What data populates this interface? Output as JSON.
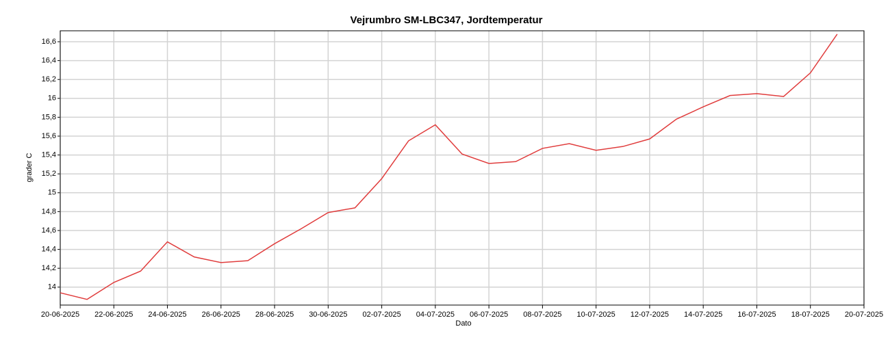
{
  "chart_data": {
    "type": "line",
    "title": "Vejrumbro SM-LBC347, Jordtemperatur",
    "xlabel": "Dato",
    "ylabel": "grader C",
    "x": [
      "20-06-2025",
      "21-06-2025",
      "22-06-2025",
      "23-06-2025",
      "24-06-2025",
      "25-06-2025",
      "26-06-2025",
      "27-06-2025",
      "28-06-2025",
      "29-06-2025",
      "30-06-2025",
      "01-07-2025",
      "02-07-2025",
      "03-07-2025",
      "04-07-2025",
      "05-07-2025",
      "06-07-2025",
      "07-07-2025",
      "08-07-2025",
      "09-07-2025",
      "10-07-2025",
      "11-07-2025",
      "12-07-2025",
      "13-07-2025",
      "14-07-2025",
      "15-07-2025",
      "16-07-2025",
      "17-07-2025",
      "18-07-2025",
      "19-07-2025"
    ],
    "series": [
      {
        "name": "Jordtemperatur",
        "color": "#e03c3c",
        "values": [
          13.94,
          13.87,
          14.05,
          14.17,
          14.48,
          14.32,
          14.26,
          14.28,
          14.46,
          14.62,
          14.79,
          14.84,
          15.15,
          15.55,
          15.72,
          15.41,
          15.31,
          15.33,
          15.47,
          15.52,
          15.45,
          15.49,
          15.57,
          15.78,
          15.91,
          16.03,
          16.05,
          16.02,
          16.27,
          16.68
        ]
      }
    ],
    "xlim": [
      "20-06-2025",
      "20-07-2025"
    ],
    "xticks": [
      "20-06-2025",
      "22-06-2025",
      "24-06-2025",
      "26-06-2025",
      "28-06-2025",
      "30-06-2025",
      "02-07-2025",
      "04-07-2025",
      "06-07-2025",
      "08-07-2025",
      "10-07-2025",
      "12-07-2025",
      "14-07-2025",
      "16-07-2025",
      "18-07-2025",
      "20-07-2025"
    ],
    "ylim": [
      13.81,
      16.716
    ],
    "yticks": [
      14,
      {
        "value": 14.2,
        "label": "14,2"
      },
      {
        "value": 14.4,
        "label": "14,4"
      },
      {
        "value": 14.6,
        "label": "14,6"
      },
      {
        "value": 14.8,
        "label": "14,8"
      },
      15,
      {
        "value": 15.2,
        "label": "15,2"
      },
      {
        "value": 15.4,
        "label": "15,4"
      },
      {
        "value": 15.6,
        "label": "15,6"
      },
      {
        "value": 15.8,
        "label": "15,8"
      },
      16,
      {
        "value": 16.2,
        "label": "16,2"
      },
      {
        "value": 16.4,
        "label": "16,4"
      },
      {
        "value": 16.6,
        "label": "16,6"
      }
    ],
    "grid": true
  }
}
